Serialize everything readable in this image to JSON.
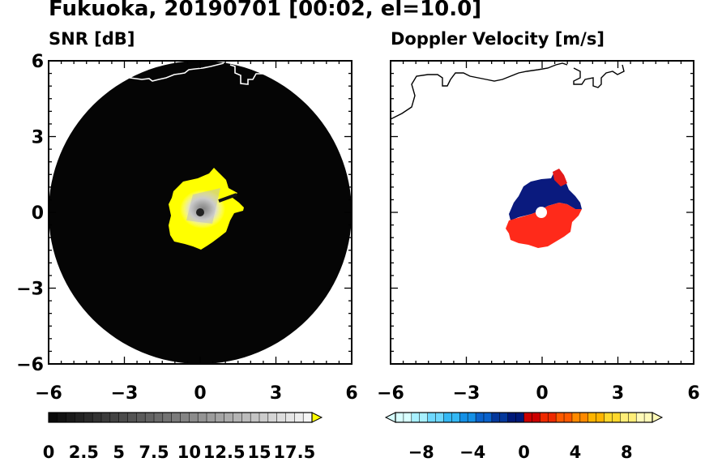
{
  "title": "Fukuoka, 20190701 [00:02, el=10.0]",
  "panels": [
    {
      "title": "SNR [dB]",
      "chart_data": {
        "type": "heatmap",
        "variable": "SNR",
        "units": "dB",
        "xlim": [
          -6,
          6
        ],
        "ylim": [
          -6,
          6
        ],
        "xticks": [
          -6,
          -3,
          0,
          3,
          6
        ],
        "yticks": [
          6,
          3,
          0,
          -3,
          -6
        ],
        "radar_range": 6,
        "colorbar": {
          "min": 0,
          "max": 18.75,
          "step": 0.625,
          "extend": "max",
          "tick_values": [
            0,
            2.5,
            5,
            7.5,
            10,
            12.5,
            15,
            17.5
          ],
          "tick_labels": [
            "0",
            "2.5",
            "5",
            "7.5",
            "10",
            "12.5",
            "15",
            "17.5"
          ],
          "low_color": "#000000",
          "high_color": "#ffffff",
          "over_color": "#ffff00"
        }
      }
    },
    {
      "title": "Doppler Velocity [m/s]",
      "chart_data": {
        "type": "heatmap",
        "variable": "Doppler Velocity",
        "units": "m/s",
        "xlim": [
          -6,
          6
        ],
        "ylim": [
          -6,
          6
        ],
        "xticks": [
          -6,
          -3,
          0,
          3,
          6
        ],
        "yticks": [
          6,
          3,
          0,
          -3,
          -6
        ],
        "colorbar": {
          "min": -10,
          "max": 10,
          "step": 0.625,
          "extend": "both",
          "tick_values": [
            -8,
            -4,
            0,
            4,
            8
          ],
          "tick_labels": [
            "−8",
            "−4",
            "0",
            "4",
            "8"
          ],
          "colors_negative": [
            "#d8ffff",
            "#a8f0ff",
            "#6ed8ff",
            "#34b8f4",
            "#1490e6",
            "#0a62cc",
            "#04389c",
            "#001878"
          ],
          "colors_positive": [
            "#cc0000",
            "#ee2a00",
            "#ff5a00",
            "#ff8a00",
            "#ffb400",
            "#ffd82c",
            "#ffee78",
            "#fffab8"
          ]
        }
      }
    }
  ]
}
